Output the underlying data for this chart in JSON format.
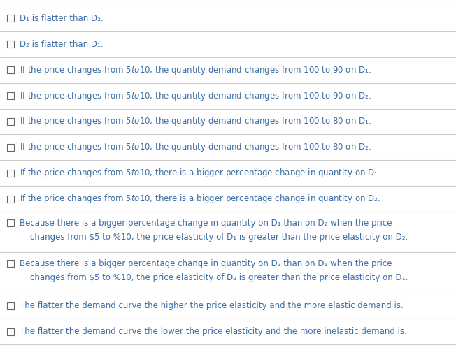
{
  "background_color": "#ffffff",
  "line_color": "#cccccc",
  "text_color": "#3c6ea5",
  "checkbox_color": "#666666",
  "font_size": 8.5,
  "items": [
    {
      "lines": [
        "D₁ is flatter than D₂."
      ],
      "double": false
    },
    {
      "lines": [
        "D₂ is flatter than D₁."
      ],
      "double": false
    },
    {
      "lines": [
        "If the price changes from $5 to $10, the quantity demand changes from 100 to 90 on D₁."
      ],
      "double": false
    },
    {
      "lines": [
        "If the price changes from $5 to $10, the quantity demand changes from 100 to 90 on D₂."
      ],
      "double": false
    },
    {
      "lines": [
        "If the price changes from $5 to $10, the quantity demand changes from 100 to 80 on D₁."
      ],
      "double": false
    },
    {
      "lines": [
        "If the price changes from $5 to $10, the quantity demand changes from 100 to 80 on D₂."
      ],
      "double": false
    },
    {
      "lines": [
        "If the price changes from $5 to $10, there is a bigger percentage change in quantity on D₁."
      ],
      "double": false
    },
    {
      "lines": [
        "If the price changes from $5 to $10, there is a bigger percentage change in quantity on D₂."
      ],
      "double": false
    },
    {
      "lines": [
        "Because there is a bigger percentage change in quantity on D₁ than on D₂ when the price",
        "    changes from $5 to %10, the price elasticity of D₁ is greater than the price elasticity on D₂."
      ],
      "double": true
    },
    {
      "lines": [
        "Because there is a bigger percentage change in quantity on D₂ than on D₁ when the price",
        "    changes from $5 to %10, the price elasticity of D₂ is greater than the price elasticity on D₁."
      ],
      "double": true
    },
    {
      "lines": [
        "The flatter the demand curve the higher the price elasticity and the more elastic demand is."
      ],
      "double": false
    },
    {
      "lines": [
        "The flatter the demand curve the lower the price elasticity and the more inelastic demand is."
      ],
      "double": false
    }
  ]
}
